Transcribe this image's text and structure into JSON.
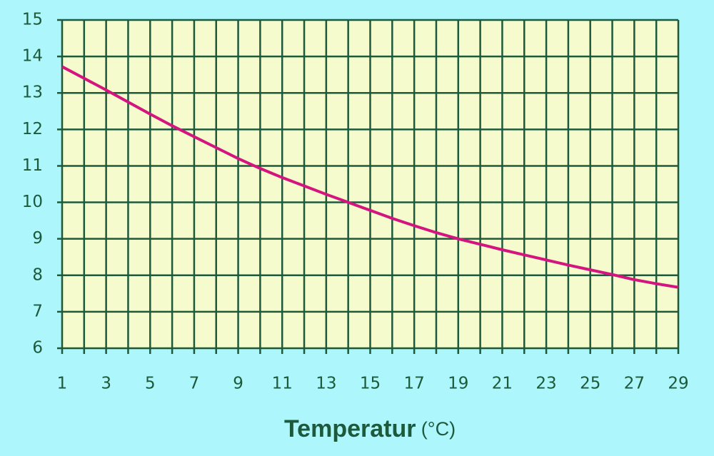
{
  "chart_data": {
    "type": "line",
    "x_label": "Temperatur",
    "x_unit": "(°C)",
    "x": [
      1,
      2,
      3,
      4,
      5,
      6,
      7,
      8,
      9,
      10,
      11,
      12,
      13,
      14,
      15,
      16,
      17,
      18,
      19,
      20,
      21,
      22,
      23,
      24,
      25,
      26,
      27,
      28,
      29
    ],
    "series": [
      {
        "color": "#d4147f",
        "values": [
          13.72,
          13.4,
          13.08,
          12.75,
          12.42,
          12.1,
          11.8,
          11.5,
          11.2,
          10.93,
          10.68,
          10.45,
          10.22,
          10.0,
          9.78,
          9.56,
          9.36,
          9.17,
          9.0,
          8.85,
          8.7,
          8.56,
          8.42,
          8.28,
          8.15,
          8.02,
          7.88,
          7.77,
          7.67
        ]
      }
    ],
    "xlim": [
      1,
      29
    ],
    "xticks": [
      1,
      3,
      5,
      7,
      9,
      11,
      13,
      15,
      17,
      19,
      21,
      23,
      25,
      27,
      29
    ],
    "x_minor_ticks": [
      2,
      4,
      6,
      8,
      10,
      12,
      14,
      16,
      18,
      20,
      22,
      24,
      26,
      28
    ],
    "ylim": [
      6,
      15
    ],
    "yticks": [
      6,
      7,
      8,
      9,
      10,
      11,
      12,
      13,
      14,
      15
    ],
    "grid": true
  }
}
